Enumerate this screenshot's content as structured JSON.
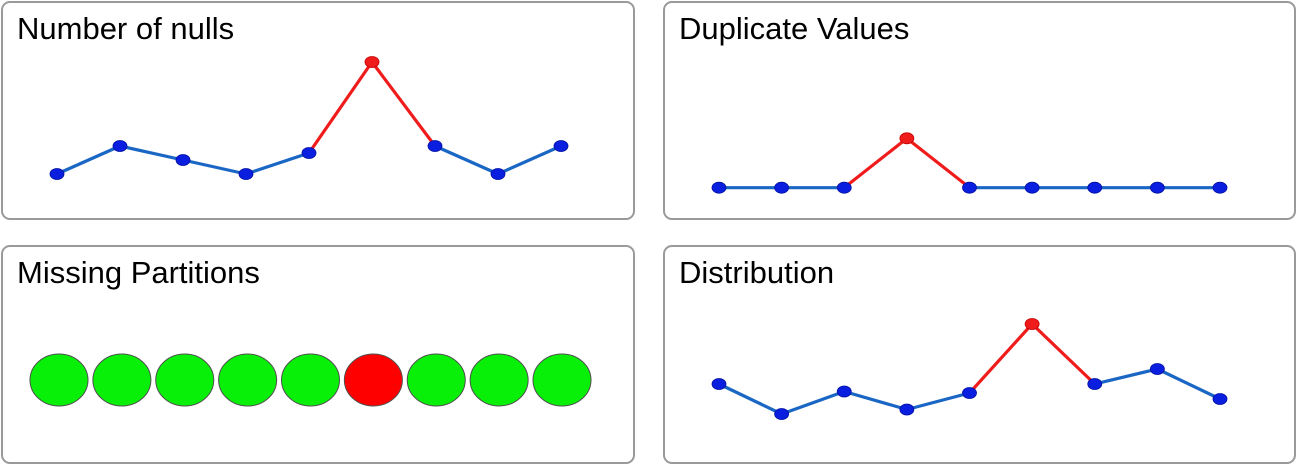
{
  "colors": {
    "normal_line": "#1a66c4",
    "normal_point": "#0a1ee0",
    "anomaly": "#f01c1c",
    "partition_present": "#08f008",
    "partition_missing": "#ff0000",
    "panel_border": "#9a9a9a"
  },
  "chart_data": [
    {
      "id": "nulls",
      "type": "line",
      "title": "Number of nulls",
      "values": [
        2,
        4,
        3,
        2,
        3.5,
        10,
        4,
        2,
        4
      ],
      "anomaly_index": 5,
      "ylim": [
        0,
        12
      ]
    },
    {
      "id": "dups",
      "type": "line",
      "title": "Duplicate Values",
      "values": [
        2,
        2,
        2,
        4,
        2,
        2,
        2,
        2,
        2
      ],
      "anomaly_index": 3,
      "ylim": [
        0,
        6
      ]
    },
    {
      "id": "parts",
      "type": "partitions",
      "title": "Missing Partitions",
      "partitions": [
        true,
        true,
        true,
        true,
        true,
        false,
        true,
        true,
        true
      ]
    },
    {
      "id": "dist",
      "type": "line",
      "title": "Distribution",
      "values": [
        4,
        2,
        3.5,
        2.3,
        3.4,
        8,
        4,
        5,
        3
      ],
      "anomaly_index": 5,
      "ylim": [
        0,
        10
      ]
    }
  ]
}
